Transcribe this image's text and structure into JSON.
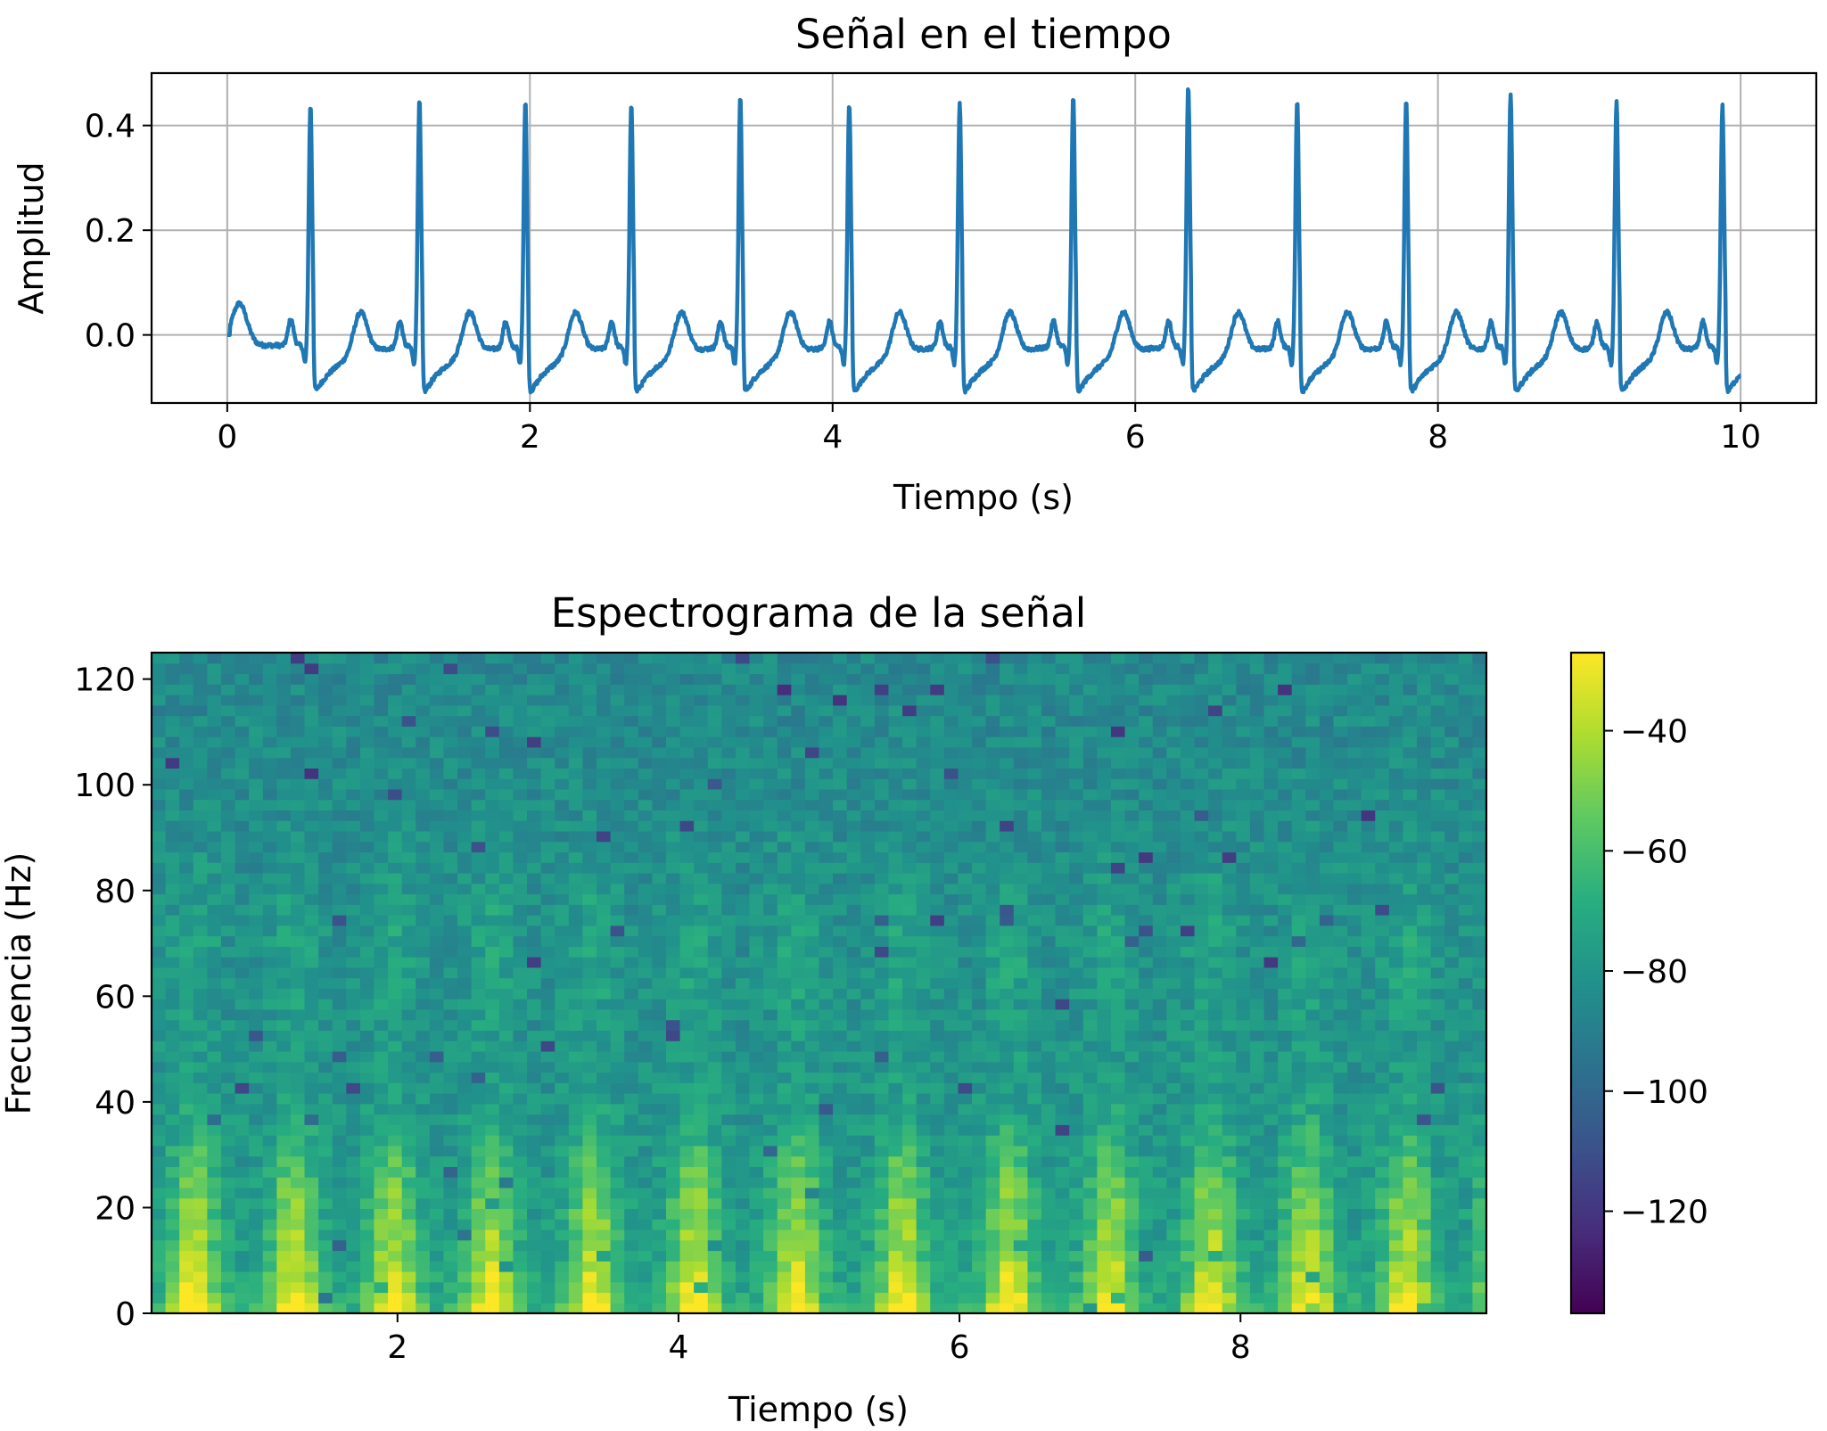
{
  "chart_data": [
    {
      "type": "line",
      "title": "Señal en el tiempo",
      "xlabel": "Tiempo (s)",
      "ylabel": "Amplitud",
      "xlim": [
        -0.5,
        10.5
      ],
      "ylim": [
        -0.13,
        0.5
      ],
      "xticks": [
        0,
        2,
        4,
        6,
        8,
        10
      ],
      "xtick_labels": [
        "0",
        "2",
        "4",
        "6",
        "8",
        "10"
      ],
      "yticks": [
        0.0,
        0.2,
        0.4
      ],
      "ytick_labels": [
        "0.0",
        "0.2",
        "0.4"
      ],
      "grid": true,
      "line_color": "#1f77b4",
      "x_range": [
        0,
        10
      ],
      "beat_times": [
        0.55,
        1.27,
        1.97,
        2.67,
        3.39,
        4.11,
        4.84,
        5.59,
        6.35,
        7.07,
        7.79,
        8.48,
        9.18,
        9.88
      ],
      "r_peak_amplitudes": [
        0.44,
        0.45,
        0.45,
        0.445,
        0.455,
        0.445,
        0.445,
        0.455,
        0.475,
        0.45,
        0.45,
        0.46,
        0.45,
        0.44
      ],
      "baseline": -0.02,
      "s_wave_amplitude": -0.09,
      "p_wave_amplitude": 0.05,
      "t_wave_amplitude": 0.03
    },
    {
      "type": "heatmap",
      "title": "Espectrograma de la señal",
      "xlabel": "Tiempo (s)",
      "ylabel": "Frecuencia (Hz)",
      "xlim": [
        0.25,
        9.75
      ],
      "ylim": [
        0,
        125
      ],
      "xticks": [
        2,
        4,
        6,
        8
      ],
      "xtick_labels": [
        "2",
        "4",
        "6",
        "8"
      ],
      "yticks": [
        0,
        20,
        40,
        60,
        80,
        100,
        120
      ],
      "ytick_labels": [
        "0",
        "20",
        "40",
        "60",
        "80",
        "100",
        "120"
      ],
      "colormap": "viridis",
      "colorbar": {
        "range": [
          -137,
          -27
        ],
        "ticks": [
          -40,
          -60,
          -80,
          -100,
          -120
        ],
        "tick_labels": [
          "−40",
          "−60",
          "−80",
          "−100",
          "−120"
        ]
      },
      "time_bins": 96,
      "frequency_bins": 63,
      "beat_times": [
        0.55,
        1.27,
        1.97,
        2.67,
        3.39,
        4.11,
        4.84,
        5.59,
        6.35,
        7.07,
        7.79,
        8.48,
        9.18,
        9.88
      ],
      "peak_power_db": -27,
      "background_power_db": -82
    }
  ]
}
